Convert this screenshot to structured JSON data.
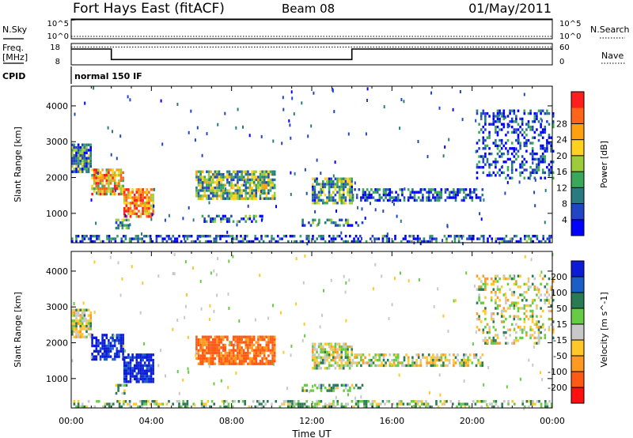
{
  "header": {
    "station": "Fort Hays East (fitACF)",
    "beam": "Beam 08",
    "date": "01/May/2011"
  },
  "left_labels": {
    "nsky": "N.Sky",
    "freq": "Freq.",
    "mhz": "[MHz]",
    "cpid": "CPID"
  },
  "right_labels": {
    "nsearch": "N.Search",
    "nave": "Nave"
  },
  "cpid_value": "normal 150 IF",
  "colors": {
    "frame": "#000000",
    "noise_line": "#000000"
  },
  "chart_data": [
    {
      "type": "line",
      "panel": "noise",
      "ylabel_left": "N.Sky",
      "ylabel_right": "N.Search",
      "y_ticks_left": [
        "10^5",
        "10^0"
      ],
      "y_ticks_right": [
        "10^5",
        "10^0"
      ],
      "ylim_log10": [
        0,
        5
      ],
      "series": [
        {
          "name": "N.Sky",
          "style": "solid",
          "x_hours": [
            0,
            0.25,
            24
          ],
          "log10_values": [
            4.8,
            4.9,
            4.9
          ]
        },
        {
          "name": "N.Search",
          "style": "dotted",
          "x_hours": [
            0,
            24
          ],
          "log10_values": [
            0.6,
            0.6
          ]
        }
      ]
    },
    {
      "type": "line",
      "panel": "frequency",
      "y_ticks_left": [
        "18",
        "8"
      ],
      "y_ticks_right": [
        "60",
        "0"
      ],
      "ylim_left": [
        8,
        18
      ],
      "ylim_right": [
        0,
        60
      ],
      "series": [
        {
          "name": "Freq.",
          "style": "solid",
          "x_hours": [
            0,
            2.0,
            2.0,
            14.0,
            14.0,
            24
          ],
          "values_mhz": [
            15.4,
            15.4,
            10.5,
            10.5,
            15.4,
            15.4
          ]
        },
        {
          "name": "Nave",
          "style": "dotted",
          "x_hours": [
            0,
            24
          ],
          "values": [
            50,
            50
          ]
        }
      ]
    },
    {
      "type": "heatmap",
      "panel": "power",
      "ylabel": "Slant Range [km]",
      "xlim_hours": [
        0,
        24
      ],
      "ylim_km": [
        180,
        4550
      ],
      "y_ticks": [
        1000,
        2000,
        3000,
        4000
      ],
      "colorbar": {
        "label": "Power [dB]",
        "ticks": [
          4,
          8,
          12,
          16,
          20,
          24,
          28
        ],
        "range": [
          0,
          32
        ],
        "colors": [
          "#0000ff",
          "#2145c4",
          "#2a7a82",
          "#3aa85a",
          "#9ccc3a",
          "#ffd21f",
          "#ffa010",
          "#ff6418",
          "#ff1e1e"
        ]
      },
      "regions": [
        {
          "t": [
            0.0,
            1.0
          ],
          "r": [
            2150,
            2950
          ],
          "level": 10,
          "density": 0.85
        },
        {
          "t": [
            1.0,
            2.6
          ],
          "r": [
            1500,
            2250
          ],
          "level": 22,
          "density": 0.8
        },
        {
          "t": [
            2.6,
            4.1
          ],
          "r": [
            900,
            1700
          ],
          "level": 24,
          "density": 0.8
        },
        {
          "t": [
            2.2,
            2.9
          ],
          "r": [
            600,
            850
          ],
          "level": 12,
          "density": 0.5
        },
        {
          "t": [
            6.2,
            10.2
          ],
          "r": [
            1400,
            2200
          ],
          "level": 14,
          "density": 0.8
        },
        {
          "t": [
            6.5,
            9.5
          ],
          "r": [
            760,
            960
          ],
          "level": 8,
          "density": 0.4
        },
        {
          "t": [
            12.0,
            14.0
          ],
          "r": [
            1300,
            2000
          ],
          "level": 12,
          "density": 0.75
        },
        {
          "t": [
            14.0,
            20.5
          ],
          "r": [
            1380,
            1700
          ],
          "level": 5,
          "density": 0.6
        },
        {
          "t": [
            11.5,
            14.5
          ],
          "r": [
            650,
            850
          ],
          "level": 8,
          "density": 0.4
        },
        {
          "t": [
            20.2,
            24.0
          ],
          "r": [
            2000,
            3900
          ],
          "level": 5,
          "density": 0.35
        },
        {
          "t": [
            0.0,
            24.0
          ],
          "r": [
            180,
            400
          ],
          "level": 6,
          "density": 0.45
        }
      ]
    },
    {
      "type": "heatmap",
      "panel": "velocity",
      "ylabel": "Slant Range [km]",
      "xlabel": "Time UT",
      "xlim_hours": [
        0,
        24
      ],
      "x_ticks": [
        "00:00",
        "04:00",
        "08:00",
        "12:00",
        "16:00",
        "20:00",
        "00:00"
      ],
      "ylim_km": [
        180,
        4550
      ],
      "y_ticks": [
        1000,
        2000,
        3000,
        4000
      ],
      "colorbar": {
        "label": "Velocity [m s^-1]",
        "ticks": [
          200,
          100,
          50,
          15,
          -15,
          -50,
          -100,
          -200
        ],
        "colors": [
          "#0a1cd6",
          "#1b5ec8",
          "#2a7a55",
          "#66cc44",
          "#c8c8c8",
          "#ffc828",
          "#ff9920",
          "#ff5a14",
          "#ff0f0f"
        ]
      },
      "regions": [
        {
          "t": [
            0.0,
            1.0
          ],
          "r": [
            2150,
            2950
          ],
          "level": 0,
          "density": 0.85
        },
        {
          "t": [
            1.0,
            2.6
          ],
          "r": [
            1500,
            2250
          ],
          "level": 240,
          "density": 0.75
        },
        {
          "t": [
            2.6,
            4.1
          ],
          "r": [
            900,
            1700
          ],
          "level": 240,
          "density": 0.8
        },
        {
          "t": [
            2.2,
            2.9
          ],
          "r": [
            600,
            850
          ],
          "level": 40,
          "density": 0.5
        },
        {
          "t": [
            6.2,
            10.2
          ],
          "r": [
            1400,
            2200
          ],
          "level": -120,
          "density": 0.8
        },
        {
          "t": [
            12.0,
            14.0
          ],
          "r": [
            1300,
            2000
          ],
          "level": 0,
          "density": 0.75
        },
        {
          "t": [
            14.0,
            20.5
          ],
          "r": [
            1380,
            1700
          ],
          "level": 0,
          "density": 0.6
        },
        {
          "t": [
            11.5,
            14.5
          ],
          "r": [
            650,
            850
          ],
          "level": 40,
          "density": 0.5
        },
        {
          "t": [
            20.2,
            24.0
          ],
          "r": [
            2000,
            3900
          ],
          "level": 0,
          "density": 0.3
        },
        {
          "t": [
            0.0,
            24.0
          ],
          "r": [
            180,
            400
          ],
          "level": 30,
          "density": 0.4
        }
      ]
    }
  ]
}
